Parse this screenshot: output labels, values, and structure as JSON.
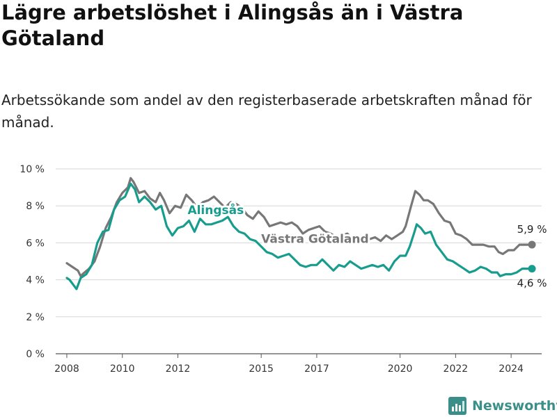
{
  "chart_data": {
    "type": "line",
    "title": "Lägre arbetslöshet i Alingsås än i Västra Götaland",
    "subtitle": "Arbetssökande som andel av den registerbaserade arbetskraften månad för månad.",
    "xlabel": "",
    "ylabel": "",
    "ylim": [
      0,
      10
    ],
    "xlim": [
      2007.6,
      2025.1
    ],
    "grid": true,
    "y_ticks": [
      {
        "value": 0,
        "label": "0 %"
      },
      {
        "value": 2,
        "label": "2 %"
      },
      {
        "value": 4,
        "label": "4 %"
      },
      {
        "value": 6,
        "label": "6 %"
      },
      {
        "value": 8,
        "label": "8 %"
      },
      {
        "value": 10,
        "label": "10 %"
      }
    ],
    "x_ticks": [
      {
        "value": 2008,
        "label": "2008"
      },
      {
        "value": 2010,
        "label": "2010"
      },
      {
        "value": 2012,
        "label": "2012"
      },
      {
        "value": 2015,
        "label": "2015"
      },
      {
        "value": 2017,
        "label": "2017"
      },
      {
        "value": 2020,
        "label": "2020"
      },
      {
        "value": 2022,
        "label": "2022"
      },
      {
        "value": 2024,
        "label": "2024"
      }
    ],
    "series": [
      {
        "name": "Västra Götaland",
        "color": "#777777",
        "end_label": "5,9 %",
        "label_at": [
          2015.0,
          6.0
        ],
        "points": [
          [
            2008.0,
            4.9
          ],
          [
            2008.2,
            4.7
          ],
          [
            2008.4,
            4.5
          ],
          [
            2008.5,
            4.2
          ],
          [
            2008.6,
            4.35
          ],
          [
            2008.8,
            4.6
          ],
          [
            2009.0,
            5.0
          ],
          [
            2009.2,
            5.8
          ],
          [
            2009.4,
            6.8
          ],
          [
            2009.6,
            7.4
          ],
          [
            2009.8,
            8.2
          ],
          [
            2010.0,
            8.7
          ],
          [
            2010.2,
            9.0
          ],
          [
            2010.3,
            9.5
          ],
          [
            2010.4,
            9.3
          ],
          [
            2010.6,
            8.7
          ],
          [
            2010.8,
            8.8
          ],
          [
            2011.0,
            8.4
          ],
          [
            2011.2,
            8.2
          ],
          [
            2011.35,
            8.7
          ],
          [
            2011.5,
            8.3
          ],
          [
            2011.7,
            7.6
          ],
          [
            2011.9,
            8.0
          ],
          [
            2012.1,
            7.9
          ],
          [
            2012.3,
            8.6
          ],
          [
            2012.5,
            8.3
          ],
          [
            2012.7,
            7.9
          ],
          [
            2012.9,
            8.2
          ],
          [
            2013.1,
            8.3
          ],
          [
            2013.3,
            8.5
          ],
          [
            2013.5,
            8.2
          ],
          [
            2013.7,
            7.9
          ],
          [
            2013.9,
            8.2
          ],
          [
            2014.1,
            8.1
          ],
          [
            2014.3,
            7.9
          ],
          [
            2014.5,
            7.5
          ],
          [
            2014.7,
            7.3
          ],
          [
            2014.9,
            7.7
          ],
          [
            2015.1,
            7.4
          ],
          [
            2015.3,
            6.9
          ],
          [
            2015.5,
            7.0
          ],
          [
            2015.7,
            7.1
          ],
          [
            2015.9,
            7.0
          ],
          [
            2016.1,
            7.1
          ],
          [
            2016.3,
            6.9
          ],
          [
            2016.5,
            6.5
          ],
          [
            2016.7,
            6.7
          ],
          [
            2016.9,
            6.8
          ],
          [
            2017.1,
            6.9
          ],
          [
            2017.3,
            6.6
          ],
          [
            2017.5,
            6.5
          ],
          [
            2017.7,
            6.3
          ],
          [
            2017.9,
            6.4
          ],
          [
            2018.1,
            6.5
          ],
          [
            2018.3,
            6.2
          ],
          [
            2018.5,
            6.1
          ],
          [
            2018.7,
            6.3
          ],
          [
            2018.9,
            6.2
          ],
          [
            2019.1,
            6.3
          ],
          [
            2019.3,
            6.1
          ],
          [
            2019.5,
            6.4
          ],
          [
            2019.7,
            6.2
          ],
          [
            2019.9,
            6.4
          ],
          [
            2020.1,
            6.6
          ],
          [
            2020.2,
            6.9
          ],
          [
            2020.4,
            8.0
          ],
          [
            2020.55,
            8.8
          ],
          [
            2020.7,
            8.6
          ],
          [
            2020.85,
            8.3
          ],
          [
            2021.0,
            8.3
          ],
          [
            2021.2,
            8.1
          ],
          [
            2021.4,
            7.6
          ],
          [
            2021.6,
            7.2
          ],
          [
            2021.8,
            7.1
          ],
          [
            2022.0,
            6.5
          ],
          [
            2022.2,
            6.4
          ],
          [
            2022.4,
            6.2
          ],
          [
            2022.6,
            5.9
          ],
          [
            2022.8,
            5.9
          ],
          [
            2023.0,
            5.9
          ],
          [
            2023.2,
            5.8
          ],
          [
            2023.4,
            5.8
          ],
          [
            2023.55,
            5.5
          ],
          [
            2023.7,
            5.4
          ],
          [
            2023.9,
            5.6
          ],
          [
            2024.1,
            5.6
          ],
          [
            2024.3,
            5.9
          ],
          [
            2024.5,
            5.9
          ],
          [
            2024.75,
            5.9
          ]
        ]
      },
      {
        "name": "Alingsås",
        "color": "#179c8e",
        "end_label": "4,6 %",
        "label_at": [
          2012.35,
          7.55
        ],
        "points": [
          [
            2008.0,
            4.1
          ],
          [
            2008.1,
            4.0
          ],
          [
            2008.2,
            3.8
          ],
          [
            2008.35,
            3.5
          ],
          [
            2008.5,
            4.1
          ],
          [
            2008.7,
            4.3
          ],
          [
            2008.9,
            4.8
          ],
          [
            2009.1,
            6.0
          ],
          [
            2009.3,
            6.6
          ],
          [
            2009.5,
            6.7
          ],
          [
            2009.7,
            7.8
          ],
          [
            2009.9,
            8.3
          ],
          [
            2010.1,
            8.5
          ],
          [
            2010.3,
            9.2
          ],
          [
            2010.45,
            8.9
          ],
          [
            2010.6,
            8.2
          ],
          [
            2010.8,
            8.5
          ],
          [
            2011.0,
            8.2
          ],
          [
            2011.2,
            7.8
          ],
          [
            2011.4,
            8.0
          ],
          [
            2011.6,
            6.9
          ],
          [
            2011.8,
            6.4
          ],
          [
            2012.0,
            6.8
          ],
          [
            2012.2,
            6.9
          ],
          [
            2012.4,
            7.2
          ],
          [
            2012.6,
            6.6
          ],
          [
            2012.8,
            7.3
          ],
          [
            2013.0,
            7.0
          ],
          [
            2013.2,
            7.0
          ],
          [
            2013.4,
            7.1
          ],
          [
            2013.6,
            7.2
          ],
          [
            2013.8,
            7.4
          ],
          [
            2014.0,
            6.9
          ],
          [
            2014.2,
            6.6
          ],
          [
            2014.4,
            6.5
          ],
          [
            2014.6,
            6.2
          ],
          [
            2014.8,
            6.1
          ],
          [
            2015.0,
            5.8
          ],
          [
            2015.2,
            5.5
          ],
          [
            2015.4,
            5.4
          ],
          [
            2015.6,
            5.2
          ],
          [
            2015.8,
            5.3
          ],
          [
            2016.0,
            5.4
          ],
          [
            2016.2,
            5.1
          ],
          [
            2016.4,
            4.8
          ],
          [
            2016.6,
            4.7
          ],
          [
            2016.8,
            4.8
          ],
          [
            2017.0,
            4.8
          ],
          [
            2017.2,
            5.1
          ],
          [
            2017.4,
            4.8
          ],
          [
            2017.6,
            4.5
          ],
          [
            2017.8,
            4.8
          ],
          [
            2018.0,
            4.7
          ],
          [
            2018.2,
            5.0
          ],
          [
            2018.4,
            4.8
          ],
          [
            2018.6,
            4.6
          ],
          [
            2018.8,
            4.7
          ],
          [
            2019.0,
            4.8
          ],
          [
            2019.2,
            4.7
          ],
          [
            2019.4,
            4.8
          ],
          [
            2019.6,
            4.5
          ],
          [
            2019.8,
            5.0
          ],
          [
            2020.0,
            5.3
          ],
          [
            2020.2,
            5.3
          ],
          [
            2020.35,
            5.8
          ],
          [
            2020.5,
            6.5
          ],
          [
            2020.6,
            7.0
          ],
          [
            2020.75,
            6.8
          ],
          [
            2020.9,
            6.5
          ],
          [
            2021.1,
            6.6
          ],
          [
            2021.3,
            5.9
          ],
          [
            2021.5,
            5.5
          ],
          [
            2021.7,
            5.1
          ],
          [
            2021.9,
            5.0
          ],
          [
            2022.1,
            4.8
          ],
          [
            2022.3,
            4.6
          ],
          [
            2022.5,
            4.4
          ],
          [
            2022.7,
            4.5
          ],
          [
            2022.9,
            4.7
          ],
          [
            2023.1,
            4.6
          ],
          [
            2023.3,
            4.4
          ],
          [
            2023.5,
            4.4
          ],
          [
            2023.6,
            4.2
          ],
          [
            2023.8,
            4.3
          ],
          [
            2024.0,
            4.3
          ],
          [
            2024.2,
            4.4
          ],
          [
            2024.4,
            4.6
          ],
          [
            2024.75,
            4.6
          ]
        ]
      }
    ]
  },
  "brand": {
    "name": "Newsworthy",
    "icon": "newsworthy-logo-icon",
    "color": "#3a8f88"
  }
}
